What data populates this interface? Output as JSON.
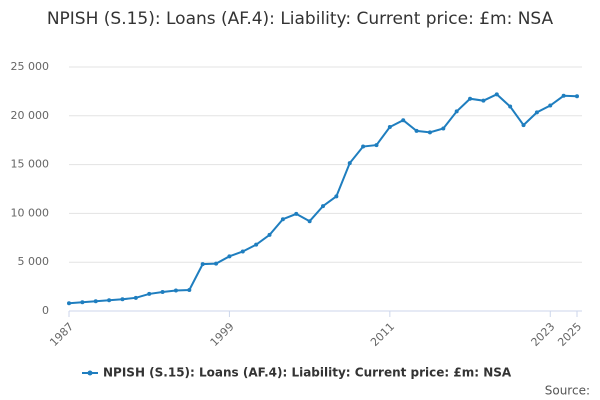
{
  "chart_data": {
    "type": "line",
    "title": "NPISH (S.15): Loans (AF.4): Liability: Current price: £m: NSA",
    "x": [
      1987,
      1988,
      1989,
      1990,
      1991,
      1992,
      1993,
      1994,
      1995,
      1996,
      1997,
      1998,
      1999,
      2000,
      2001,
      2002,
      2003,
      2004,
      2005,
      2006,
      2007,
      2008,
      2009,
      2010,
      2011,
      2012,
      2013,
      2014,
      2015,
      2016,
      2017,
      2018,
      2019,
      2020,
      2021,
      2022,
      2023,
      2024,
      2025
    ],
    "series": [
      {
        "name": "NPISH (S.15): Loans (AF.4): Liability: Current price: £m: NSA",
        "color": "#1f7ebf",
        "values": [
          800,
          900,
          1000,
          1100,
          1200,
          1350,
          1750,
          1950,
          2100,
          2150,
          4800,
          4850,
          5600,
          6100,
          6800,
          7800,
          9400,
          9950,
          9200,
          10750,
          11750,
          15150,
          16850,
          17000,
          18850,
          19550,
          18450,
          18300,
          18700,
          20450,
          21750,
          21550,
          22200,
          20950,
          19050,
          20350,
          21050,
          22050,
          22000
        ]
      }
    ],
    "xlim": [
      1987,
      2025
    ],
    "xticks": [
      1987,
      1999,
      2011,
      2023,
      2025
    ],
    "ylim": [
      0,
      25000
    ],
    "yticks": [
      0,
      {
        "value": 5000,
        "label": "5 000"
      },
      {
        "value": 10000,
        "label": "10 000"
      },
      {
        "value": 15000,
        "label": "15 000"
      },
      {
        "value": 20000,
        "label": "20 000"
      },
      {
        "value": 25000,
        "label": "25 000"
      }
    ],
    "grid": true,
    "legend": "bottom",
    "source": "Source:"
  }
}
